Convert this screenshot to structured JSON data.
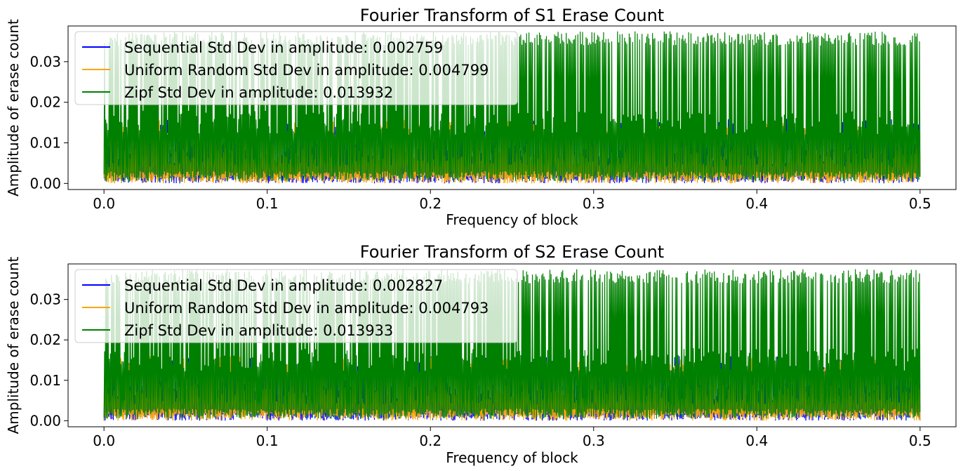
{
  "chart_data": [
    {
      "type": "line",
      "title": "Fourier Transform of S1 Erase Count",
      "xlabel": "Frequency of block",
      "ylabel": "Amplitude of erase count",
      "xlim": [
        -0.022,
        0.522
      ],
      "ylim": [
        -0.0015,
        0.0388
      ],
      "xticks": [
        0.0,
        0.1,
        0.2,
        0.3,
        0.4,
        0.5
      ],
      "xtick_labels": [
        "0.0",
        "0.1",
        "0.2",
        "0.3",
        "0.4",
        "0.5"
      ],
      "yticks": [
        0.0,
        0.01,
        0.02,
        0.03
      ],
      "ytick_labels": [
        "0.00",
        "0.01",
        "0.02",
        "0.03"
      ],
      "legend_position": "upper-left",
      "grid": false,
      "series": [
        {
          "name": "Sequential Std Dev in amplitude: 0.002759",
          "color": "#0000ff",
          "x_range": [
            0.0,
            0.5
          ],
          "amplitude_range": [
            0.0,
            0.016
          ]
        },
        {
          "name": "Uniform Random Std Dev in amplitude: 0.004799",
          "color": "#ffa500",
          "x_range": [
            0.0,
            0.5
          ],
          "amplitude_range": [
            0.0,
            0.016
          ]
        },
        {
          "name": "Zipf Std Dev in amplitude: 0.013932",
          "color": "#008000",
          "x_range": [
            0.0,
            0.5
          ],
          "amplitude_range": [
            0.0,
            0.0375
          ]
        }
      ]
    },
    {
      "type": "line",
      "title": "Fourier Transform of S2 Erase Count",
      "xlabel": "Frequency of block",
      "ylabel": "Amplitude of erase count",
      "xlim": [
        -0.022,
        0.522
      ],
      "ylim": [
        -0.0015,
        0.0388
      ],
      "xticks": [
        0.0,
        0.1,
        0.2,
        0.3,
        0.4,
        0.5
      ],
      "xtick_labels": [
        "0.0",
        "0.1",
        "0.2",
        "0.3",
        "0.4",
        "0.5"
      ],
      "yticks": [
        0.0,
        0.01,
        0.02,
        0.03
      ],
      "ytick_labels": [
        "0.00",
        "0.01",
        "0.02",
        "0.03"
      ],
      "legend_position": "upper-left",
      "grid": false,
      "series": [
        {
          "name": "Sequential Std Dev in amplitude: 0.002827",
          "color": "#0000ff",
          "x_range": [
            0.0,
            0.5
          ],
          "amplitude_range": [
            0.0,
            0.016
          ]
        },
        {
          "name": "Uniform Random Std Dev in amplitude: 0.004793",
          "color": "#ffa500",
          "x_range": [
            0.0,
            0.5
          ],
          "amplitude_range": [
            0.0,
            0.016
          ]
        },
        {
          "name": "Zipf Std Dev in amplitude: 0.013933",
          "color": "#008000",
          "x_range": [
            0.0,
            0.5
          ],
          "amplitude_range": [
            0.0,
            0.0375
          ]
        }
      ]
    }
  ]
}
